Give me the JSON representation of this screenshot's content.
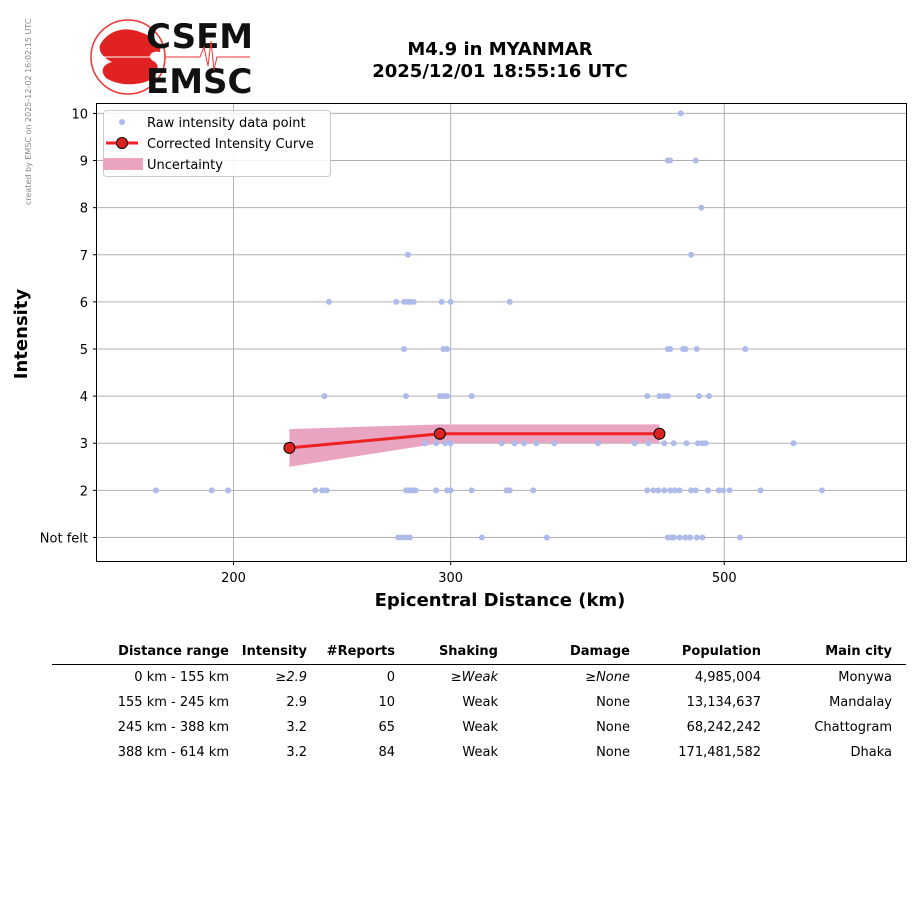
{
  "watermark": "created by EMSC on 2025-12-02 16:02:15 UTC",
  "logo": {
    "line1": "CSEM",
    "line2": "EMSC"
  },
  "header": {
    "title_line1": "M4.9 in MYANMAR",
    "title_line2": "2025/12/01 18:55:16 UTC"
  },
  "colors": {
    "raw_points": "#aebbea",
    "curve": "#ee2222",
    "marker": "#dd2222",
    "uncertainty": "#e9a4c1",
    "grid": "#b0b0b0"
  },
  "chart_data": {
    "type": "scatter",
    "xlabel": "Epicentral Distance (km)",
    "ylabel": "Intensity",
    "x_scale": "log",
    "xlim": [
      155,
      702
    ],
    "ylim": [
      0.5,
      10.2
    ],
    "x_ticks": [
      200,
      300,
      500
    ],
    "y_ticks": [
      1,
      2,
      3,
      4,
      5,
      6,
      7,
      8,
      9,
      10
    ],
    "y_tick_labels": [
      "Not felt",
      "2",
      "3",
      "4",
      "5",
      "6",
      "7",
      "8",
      "9",
      "10"
    ],
    "grid": true,
    "legend_position": "top-left",
    "legend": [
      "Raw intensity data point",
      "Corrected Intensity Curve",
      "Uncertainty"
    ],
    "series": [
      {
        "name": "Raw intensity data point",
        "points": [
          [
            461,
            10
          ],
          [
            450,
            9
          ],
          [
            452,
            9
          ],
          [
            474,
            9
          ],
          [
            479,
            8
          ],
          [
            277,
            7
          ],
          [
            470,
            7
          ],
          [
            239,
            6
          ],
          [
            271,
            6
          ],
          [
            275,
            6
          ],
          [
            277,
            6
          ],
          [
            278,
            6
          ],
          [
            280,
            6
          ],
          [
            295,
            6
          ],
          [
            300,
            6
          ],
          [
            335,
            6
          ],
          [
            275,
            5
          ],
          [
            296,
            5
          ],
          [
            298,
            5
          ],
          [
            450,
            5
          ],
          [
            452,
            5
          ],
          [
            463,
            5
          ],
          [
            465,
            5
          ],
          [
            475,
            5
          ],
          [
            520,
            5
          ],
          [
            237,
            4
          ],
          [
            276,
            4
          ],
          [
            294,
            4
          ],
          [
            296,
            4
          ],
          [
            298,
            4
          ],
          [
            312,
            4
          ],
          [
            433,
            4
          ],
          [
            443,
            4
          ],
          [
            447,
            4
          ],
          [
            450,
            4
          ],
          [
            486,
            4
          ],
          [
            477,
            4
          ],
          [
            286,
            3
          ],
          [
            292,
            3
          ],
          [
            297,
            3
          ],
          [
            300,
            3
          ],
          [
            330,
            3
          ],
          [
            338,
            3
          ],
          [
            344,
            3
          ],
          [
            352,
            3
          ],
          [
            364,
            3
          ],
          [
            395,
            3
          ],
          [
            423,
            3
          ],
          [
            434,
            3
          ],
          [
            447,
            3
          ],
          [
            455,
            3
          ],
          [
            466,
            3
          ],
          [
            476,
            3
          ],
          [
            480,
            3
          ],
          [
            483,
            3
          ],
          [
            569,
            3
          ],
          [
            173,
            2
          ],
          [
            192,
            2
          ],
          [
            198,
            2
          ],
          [
            233,
            2
          ],
          [
            236,
            2
          ],
          [
            238,
            2
          ],
          [
            276,
            2
          ],
          [
            277,
            2
          ],
          [
            278,
            2
          ],
          [
            279,
            2
          ],
          [
            281,
            2
          ],
          [
            292,
            2
          ],
          [
            298,
            2
          ],
          [
            300,
            2
          ],
          [
            312,
            2
          ],
          [
            333,
            2
          ],
          [
            335,
            2
          ],
          [
            350,
            2
          ],
          [
            433,
            2
          ],
          [
            438,
            2
          ],
          [
            442,
            2
          ],
          [
            447,
            2
          ],
          [
            452,
            2
          ],
          [
            456,
            2
          ],
          [
            460,
            2
          ],
          [
            470,
            2
          ],
          [
            474,
            2
          ],
          [
            485,
            2
          ],
          [
            495,
            2
          ],
          [
            499,
            2
          ],
          [
            505,
            2
          ],
          [
            535,
            2
          ],
          [
            600,
            2
          ],
          [
            272,
            1
          ],
          [
            274,
            1
          ],
          [
            276,
            1
          ],
          [
            278,
            1
          ],
          [
            318,
            1
          ],
          [
            359,
            1
          ],
          [
            450,
            1
          ],
          [
            453,
            1
          ],
          [
            455,
            1
          ],
          [
            460,
            1
          ],
          [
            465,
            1
          ],
          [
            469,
            1
          ],
          [
            475,
            1
          ],
          [
            480,
            1
          ],
          [
            515,
            1
          ]
        ]
      },
      {
        "name": "Corrected Intensity Curve",
        "points": [
          [
            222,
            2.9
          ],
          [
            294,
            3.2
          ],
          [
            443,
            3.2
          ]
        ]
      },
      {
        "name": "Uncertainty",
        "x": [
          222,
          294,
          443
        ],
        "lower": [
          2.5,
          3.0,
          3.0
        ],
        "upper": [
          3.3,
          3.4,
          3.4
        ]
      }
    ]
  },
  "table": {
    "headers": [
      "Distance range",
      "Intensity",
      "#Reports",
      "Shaking",
      "Damage",
      "Population",
      "Main city"
    ],
    "rows": [
      {
        "range": "0 km -  155 km",
        "intensity": "≥2.9",
        "reports": "0",
        "shaking": "≥Weak",
        "damage": "≥None",
        "population": "4,985,004",
        "city": "Monywa"
      },
      {
        "range": "155 km -  245 km",
        "intensity": "2.9",
        "reports": "10",
        "shaking": "Weak",
        "damage": "None",
        "population": "13,134,637",
        "city": "Mandalay"
      },
      {
        "range": "245 km -  388 km",
        "intensity": "3.2",
        "reports": "65",
        "shaking": "Weak",
        "damage": "None",
        "population": "68,242,242",
        "city": "Chattogram"
      },
      {
        "range": "388 km -  614 km",
        "intensity": "3.2",
        "reports": "84",
        "shaking": "Weak",
        "damage": "None",
        "population": "171,481,582",
        "city": "Dhaka"
      }
    ]
  }
}
